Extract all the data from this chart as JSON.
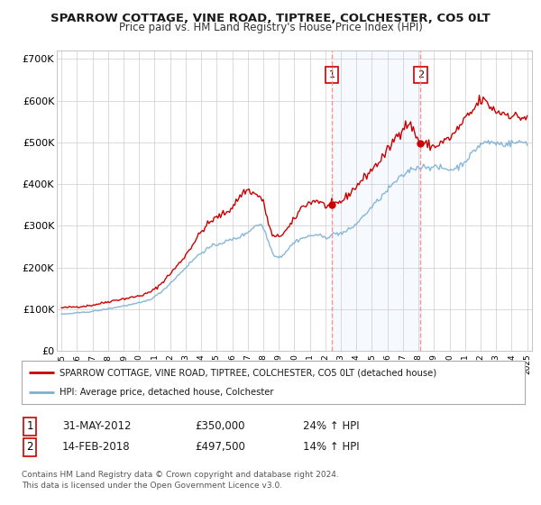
{
  "title": "SPARROW COTTAGE, VINE ROAD, TIPTREE, COLCHESTER, CO5 0LT",
  "subtitle": "Price paid vs. HM Land Registry's House Price Index (HPI)",
  "title_fontsize": 9.5,
  "subtitle_fontsize": 8.5,
  "bg_color": "#ffffff",
  "plot_bg_color": "#ffffff",
  "grid_color": "#cccccc",
  "red_line_color": "#cc0000",
  "blue_line_color": "#7ab0d4",
  "shaded_color": "#ddeeff",
  "dashed_line_color": "#ff8888",
  "point1_x": 2012.42,
  "point1_y": 350000,
  "point2_x": 2018.12,
  "point2_y": 497500,
  "shade_start": 2012.42,
  "shade_end": 2018.12,
  "ylim": [
    0,
    720000
  ],
  "xlim_start": 1994.7,
  "xlim_end": 2025.3,
  "ytick_labels": [
    "£0",
    "£100K",
    "£200K",
    "£300K",
    "£400K",
    "£500K",
    "£600K",
    "£700K"
  ],
  "ytick_values": [
    0,
    100000,
    200000,
    300000,
    400000,
    500000,
    600000,
    700000
  ],
  "xtick_years": [
    1995,
    1996,
    1997,
    1998,
    1999,
    2000,
    2001,
    2002,
    2003,
    2004,
    2005,
    2006,
    2007,
    2008,
    2009,
    2010,
    2011,
    2012,
    2013,
    2014,
    2015,
    2016,
    2017,
    2018,
    2019,
    2020,
    2021,
    2022,
    2023,
    2024,
    2025
  ],
  "legend_red_label": "SPARROW COTTAGE, VINE ROAD, TIPTREE, COLCHESTER, CO5 0LT (detached house)",
  "legend_blue_label": "HPI: Average price, detached house, Colchester",
  "table_row1": [
    "1",
    "31-MAY-2012",
    "£350,000",
    "24% ↑ HPI"
  ],
  "table_row2": [
    "2",
    "14-FEB-2018",
    "£497,500",
    "14% ↑ HPI"
  ],
  "footer": "Contains HM Land Registry data © Crown copyright and database right 2024.\nThis data is licensed under the Open Government Licence v3.0.",
  "footer_fontsize": 6.5
}
